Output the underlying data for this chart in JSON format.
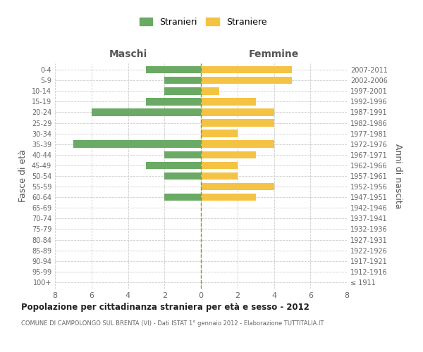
{
  "age_groups": [
    "100+",
    "95-99",
    "90-94",
    "85-89",
    "80-84",
    "75-79",
    "70-74",
    "65-69",
    "60-64",
    "55-59",
    "50-54",
    "45-49",
    "40-44",
    "35-39",
    "30-34",
    "25-29",
    "20-24",
    "15-19",
    "10-14",
    "5-9",
    "0-4"
  ],
  "birth_years": [
    "≤ 1911",
    "1912-1916",
    "1917-1921",
    "1922-1926",
    "1927-1931",
    "1932-1936",
    "1937-1941",
    "1942-1946",
    "1947-1951",
    "1952-1956",
    "1957-1961",
    "1962-1966",
    "1967-1971",
    "1972-1976",
    "1977-1981",
    "1982-1986",
    "1987-1991",
    "1992-1996",
    "1997-2001",
    "2002-2006",
    "2007-2011"
  ],
  "maschi": [
    0,
    0,
    0,
    0,
    0,
    0,
    0,
    0,
    2,
    0,
    2,
    3,
    2,
    7,
    0,
    0,
    6,
    3,
    2,
    2,
    3
  ],
  "femmine": [
    0,
    0,
    0,
    0,
    0,
    0,
    0,
    0,
    3,
    4,
    2,
    2,
    3,
    4,
    2,
    4,
    4,
    3,
    1,
    5,
    5
  ],
  "color_maschi": "#6aaa64",
  "color_femmine": "#f5c343",
  "xlim": [
    -8,
    8
  ],
  "xticks": [
    -8,
    -6,
    -4,
    -2,
    0,
    2,
    4,
    6,
    8
  ],
  "xticklabels": [
    "8",
    "6",
    "4",
    "2",
    "0",
    "2",
    "4",
    "6",
    "8"
  ],
  "ylabel_left": "Fasce di età",
  "ylabel_right": "Anni di nascita",
  "label_maschi": "Stranieri",
  "label_femmine": "Straniere",
  "title": "Popolazione per cittadinanza straniera per età e sesso - 2012",
  "subtitle": "COMUNE DI CAMPOLONGO SUL BRENTA (VI) - Dati ISTAT 1° gennaio 2012 - Elaborazione TUTTITALIA.IT",
  "header_maschi": "Maschi",
  "header_femmine": "Femmine",
  "background_color": "#ffffff",
  "grid_color": "#cccccc",
  "bar_height": 0.7,
  "center_line_color": "#999900"
}
